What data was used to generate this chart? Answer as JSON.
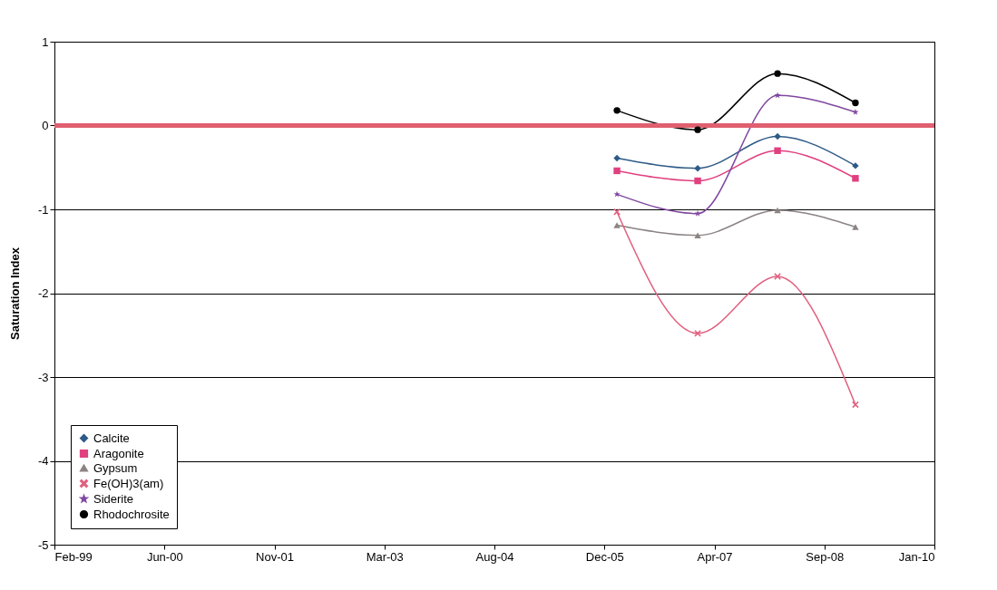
{
  "chart_data": {
    "type": "line",
    "ylabel": "Saturation Index",
    "x": [
      "2006-02-09",
      "2007-02-11",
      "2008-02-09",
      "2009-01-28"
    ],
    "series": [
      {
        "name": "Calcite",
        "color": "#2e5a87",
        "marker": "diamond",
        "values": [
          -0.39,
          -0.51,
          -0.13,
          -0.48
        ]
      },
      {
        "name": "Aragonite",
        "color": "#e0407f",
        "marker": "square",
        "values": [
          -0.54,
          -0.66,
          -0.3,
          -0.63
        ]
      },
      {
        "name": "Gypsum",
        "color": "#8c8484",
        "marker": "triangle",
        "values": [
          -1.19,
          -1.31,
          -1.01,
          -1.21
        ]
      },
      {
        "name": "Fe(OH)3(am)",
        "color": "#e0607f",
        "marker": "cross",
        "values": [
          -1.03,
          -2.48,
          -1.8,
          -3.33
        ]
      },
      {
        "name": "Siderite",
        "color": "#8048a0",
        "marker": "star",
        "values": [
          -0.82,
          -1.05,
          0.36,
          0.16
        ]
      },
      {
        "name": "Rhodochrosite",
        "color": "#000000",
        "marker": "circle",
        "values": [
          0.18,
          -0.05,
          0.62,
          0.27
        ]
      }
    ],
    "xlim": [
      "1999-02-09",
      "2010-01-22"
    ],
    "xticks": [
      {
        "value": "1999-02-09",
        "label": "Feb-99"
      },
      {
        "value": "2000-06-23",
        "label": "Jun-00"
      },
      {
        "value": "2001-11-05",
        "label": "Nov-01"
      },
      {
        "value": "2003-03-20",
        "label": "Mar-03"
      },
      {
        "value": "2004-08-01",
        "label": "Aug-04"
      },
      {
        "value": "2005-12-14",
        "label": "Dec-05"
      },
      {
        "value": "2007-04-28",
        "label": "Apr-07"
      },
      {
        "value": "2008-09-09",
        "label": "Sep-08"
      },
      {
        "value": "2010-01-22",
        "label": "Jan-10"
      }
    ],
    "ylim": [
      -5,
      1
    ],
    "yticks": [
      -5,
      -4,
      -3,
      -2,
      -1,
      0,
      1
    ],
    "ref_lines": [
      {
        "axis": "y",
        "value": 0,
        "color": "#e06070"
      }
    ],
    "grid": "y",
    "legend": "bottom left"
  }
}
